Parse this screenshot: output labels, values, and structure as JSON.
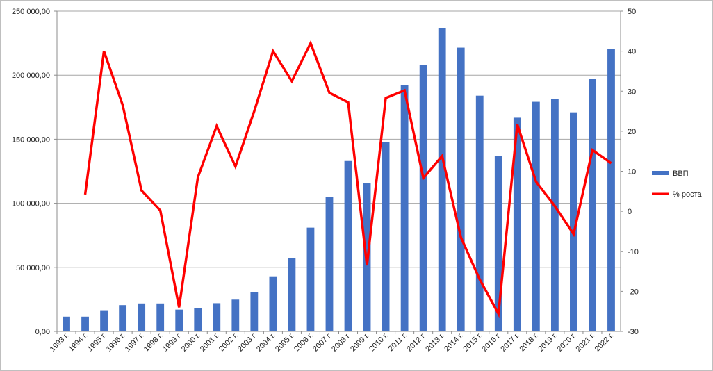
{
  "chart_data": {
    "type": "bar",
    "categories": [
      "1993 г.",
      "1994 г.",
      "1995 г.",
      "1996 г.",
      "1997 г.",
      "1998 г.",
      "1999 г.",
      "2000 г.",
      "2001 г.",
      "2002 г.",
      "2003 г.",
      "2004 г.",
      "2005 г.",
      "2006 г.",
      "2007 г.",
      "2008 г.",
      "2009 г.",
      "2010 г.",
      "2011 г.",
      "2012 г.",
      "2013 г.",
      "2014 г.",
      "2015 г.",
      "2016 г.",
      "2017 г.",
      "2018 г.",
      "2019 г.",
      "2020 г.",
      "2021 г.",
      "2022 г."
    ],
    "series": [
      {
        "name": "ВВП",
        "type": "bar",
        "axis": "left",
        "color": "#4472C4",
        "values": [
          11500,
          11500,
          16500,
          20500,
          21800,
          21800,
          17000,
          18000,
          22000,
          24800,
          30800,
          43000,
          57000,
          81000,
          105000,
          133000,
          115500,
          148000,
          192000,
          208000,
          236700,
          221500,
          184000,
          137000,
          166800,
          179200,
          181500,
          171000,
          197300,
          220500
        ]
      },
      {
        "name": "% роста",
        "type": "line",
        "axis": "right",
        "color": "#FF0000",
        "values": [
          null,
          4.2,
          40,
          26.5,
          5.2,
          0.2,
          -24,
          8.5,
          21.3,
          11.2,
          25,
          40,
          32.5,
          42,
          29.6,
          27.2,
          -13.5,
          28.3,
          30.2,
          8.3,
          13.8,
          -6.5,
          -17,
          -25.6,
          21.7,
          7.4,
          1.3,
          -5.7,
          15.3,
          12
        ]
      }
    ],
    "left_axis": {
      "min": 0,
      "max": 250000,
      "step": 50000,
      "tick_labels": [
        "0,00",
        "50 000,00",
        "100 000,00",
        "150 000,00",
        "200 000,00",
        "250 000,00"
      ]
    },
    "right_axis": {
      "min": -30,
      "max": 50,
      "step": 10,
      "tick_labels": [
        "-30",
        "-20",
        "-10",
        "0",
        "10",
        "20",
        "30",
        "40",
        "50"
      ]
    },
    "grid": true,
    "legend_position": "right",
    "title": "",
    "xlabel": "",
    "ylabel": ""
  }
}
